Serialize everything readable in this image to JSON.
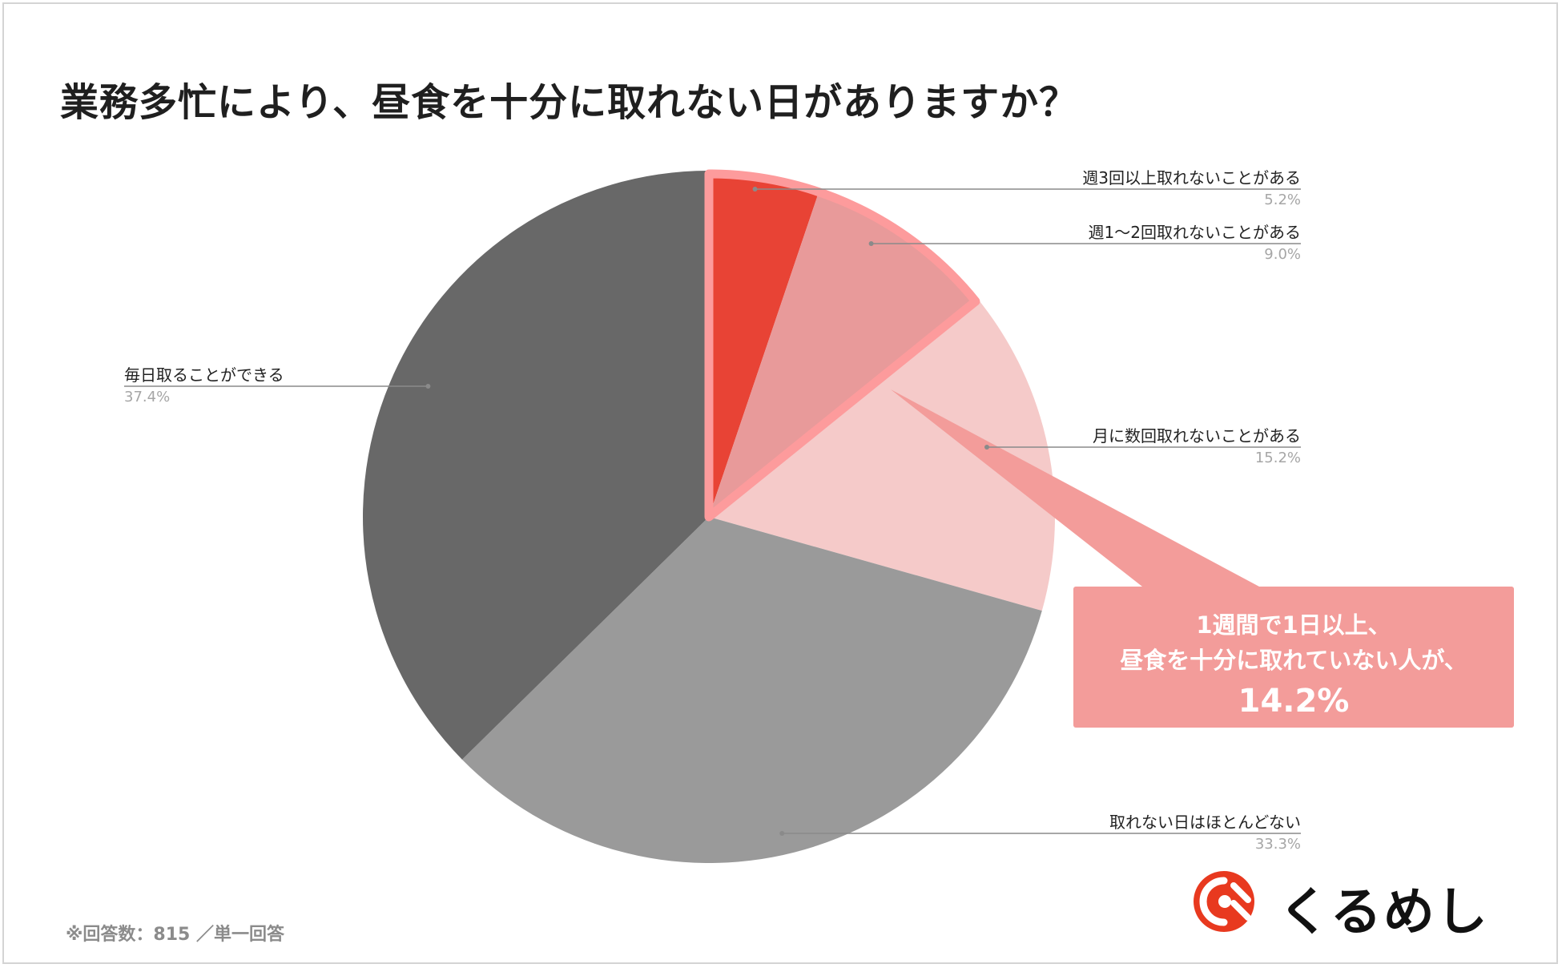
{
  "title": "業務多忙により、昼食を十分に取れない日がありますか？",
  "chart_data": {
    "type": "pie",
    "title": "業務多忙により、昼食を十分に取れない日がありますか？",
    "slices": [
      {
        "label": "週3回以上取れないことがある",
        "value": 5.2,
        "display": "5.2%",
        "color": "#e84335"
      },
      {
        "label": "週1〜2回取れないことがある",
        "value": 9.0,
        "display": "9.0%",
        "color": "#e89a9a"
      },
      {
        "label": "月に数回取れないことがある",
        "value": 15.2,
        "display": "15.2%",
        "color": "#f5cac9"
      },
      {
        "label": "取れない日はほとんどない",
        "value": 33.3,
        "display": "33.3%",
        "color": "#9a9a9a"
      },
      {
        "label": "毎日取ることができる",
        "value": 37.4,
        "display": "37.4%",
        "color": "#686868"
      }
    ],
    "highlight_color": "#fd9b9c"
  },
  "callout": {
    "line1": "1週間で1日以上、",
    "line2": "昼食を十分に取れていない人が、",
    "value": "14.2%",
    "color": "#f39c9a"
  },
  "footnote": "※回答数：815 ／単一回答",
  "brand": {
    "name": "くるめし",
    "icon": "kurumeshi-logo-icon",
    "color": "#e8391f"
  }
}
